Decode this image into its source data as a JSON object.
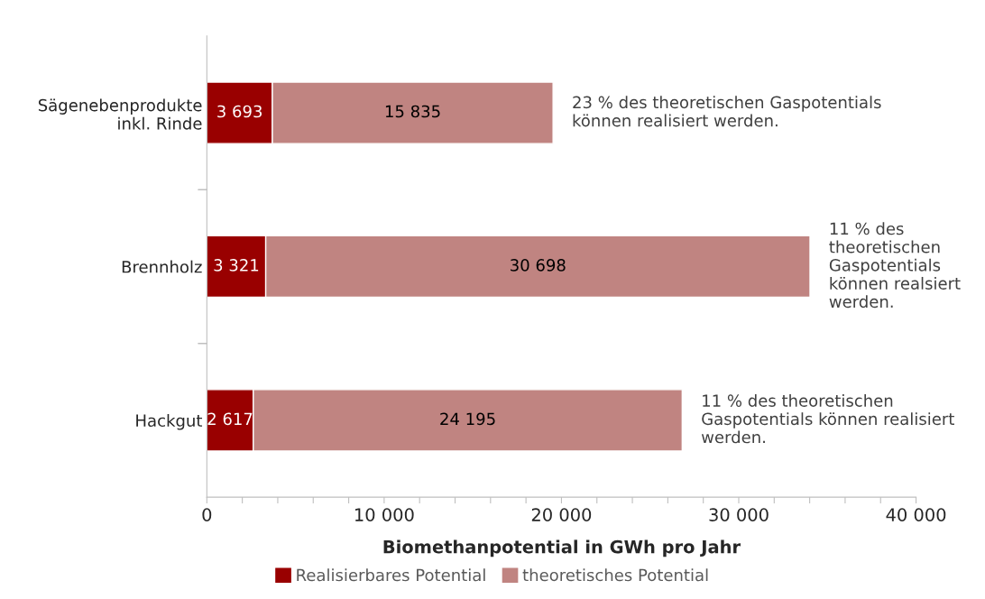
{
  "chart_data": {
    "type": "bar",
    "orientation": "horizontal",
    "stacked": true,
    "categories": [
      "Sägenebenprodukte\ninkl. Rinde",
      "Brennholz",
      "Hackgut"
    ],
    "series": [
      {
        "name": "Realisierbares Potential",
        "color": "#990000",
        "values": [
          3693,
          3321,
          2617
        ],
        "value_labels": [
          "3 693",
          "3 321",
          "2 617"
        ]
      },
      {
        "name": "theoretisches Potential",
        "color": "#c08481",
        "values": [
          15835,
          30698,
          24195
        ],
        "value_labels": [
          "15 835",
          "30 698",
          "24 195"
        ]
      }
    ],
    "xlabel": "Biomethanpotential in GWh pro Jahr",
    "xlim": [
      0,
      40000
    ],
    "xticks": [
      0,
      {
        "value": 2000,
        "label": null
      },
      {
        "value": 4000,
        "label": null
      },
      {
        "value": 6000,
        "label": null
      },
      {
        "value": 8000,
        "label": null
      },
      {
        "value": 10000,
        "label": "10 000"
      },
      {
        "value": 12000,
        "label": null
      },
      {
        "value": 14000,
        "label": null
      },
      {
        "value": 16000,
        "label": null
      },
      {
        "value": 18000,
        "label": null
      },
      {
        "value": 20000,
        "label": "20 000"
      },
      {
        "value": 22000,
        "label": null
      },
      {
        "value": 24000,
        "label": null
      },
      {
        "value": 26000,
        "label": null
      },
      {
        "value": 28000,
        "label": null
      },
      {
        "value": 30000,
        "label": "30 000"
      },
      {
        "value": 32000,
        "label": null
      },
      {
        "value": 34000,
        "label": null
      },
      {
        "value": 36000,
        "label": null
      },
      {
        "value": 38000,
        "label": null
      },
      {
        "value": 40000,
        "label": "40 000"
      }
    ],
    "annotations": [
      {
        "text": "23 % des theoretischen Gaspotentials\nkönnen realisiert werden.",
        "x": 19528,
        "y": "Sägenebenprodukte\ninkl. Rinde"
      },
      {
        "text": "11 % des\ntheoretischen\nGaspotentials\nkönnen realsiert\nwerden.",
        "x": 34019,
        "y": "Brennholz"
      },
      {
        "text": "11 % des theoretischen\nGaspotentials können realisiert\nwerden.",
        "x": 26812,
        "y": "Hackgut"
      }
    ],
    "legend": "bottom",
    "grid": false
  }
}
